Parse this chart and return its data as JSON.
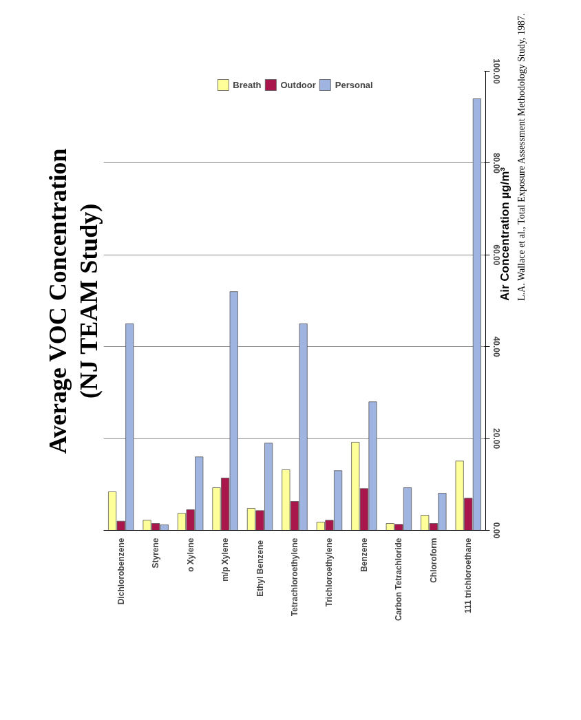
{
  "chart_data": {
    "type": "bar",
    "title": "Average VOC Concentration",
    "subtitle": "(NJ TEAM Study)",
    "ylabel": "Air Concentration µg/m³",
    "categories": [
      "Dichlorobenzene",
      "Styrene",
      "o Xylene",
      "m/p Xylene",
      "Ethyl  Benzene",
      "Tetrachloroethylene",
      "Trichloroethylene",
      "Benzene",
      "Carbon Tetrachloride",
      "Chloroform",
      "111 trichloroethane"
    ],
    "series": [
      {
        "name": "Breath",
        "color": "#ffff99",
        "values": [
          8.4,
          2.2,
          3.7,
          9.3,
          4.8,
          13.2,
          1.8,
          19.2,
          1.5,
          3.3,
          15.1
        ]
      },
      {
        "name": "Outdoor",
        "color": "#a8164c",
        "values": [
          2,
          1.5,
          4.5,
          11.4,
          4.3,
          6.3,
          2.2,
          9.1,
          1.3,
          1.5,
          7
        ]
      },
      {
        "name": "Personal",
        "color": "#9fb4e0",
        "values": [
          45,
          1.2,
          16,
          52,
          19,
          45,
          13,
          28,
          9.3,
          8.1,
          94
        ]
      }
    ],
    "ylim": [
      0,
      100
    ],
    "yticks": [
      {
        "value": 0,
        "label": "0.00"
      },
      {
        "value": 20,
        "label": "20.00"
      },
      {
        "value": 40,
        "label": "40.00"
      },
      {
        "value": 60,
        "label": "60.00"
      },
      {
        "value": 80,
        "label": "80.00"
      },
      {
        "value": 100,
        "label": "100.00"
      }
    ],
    "grid": "y",
    "legend": "top",
    "annotations": [
      "L.A. Wallace et al., Total Exposure Assessment Methodology Study, 1987."
    ]
  }
}
